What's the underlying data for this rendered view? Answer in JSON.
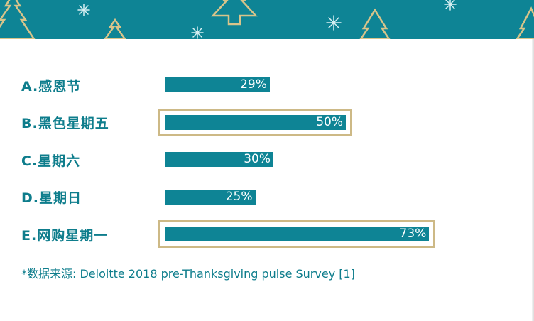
{
  "banner": {
    "background": "#0e8495",
    "decoration": "gold-christmas-tree-outlines-and-snowflakes"
  },
  "colors": {
    "bar": "#0e8495",
    "label": "#0e7d8c",
    "highlight_frame": "#cdb986",
    "value_text": "#ffffff"
  },
  "chart_data": {
    "type": "bar",
    "orientation": "horizontal",
    "categories": [
      "A.感恩节",
      "B.黑色星期五",
      "C.星期六",
      "D.星期日",
      "E.网购星期一"
    ],
    "values": [
      29,
      50,
      30,
      25,
      73
    ],
    "value_labels": [
      "29%",
      "50%",
      "30%",
      "25%",
      "73%"
    ],
    "highlighted": [
      "B.黑色星期五",
      "E.网购星期一"
    ],
    "unit": "%",
    "title": "",
    "xlabel": "",
    "ylabel": "",
    "xlim": [
      0,
      100
    ],
    "grid": false,
    "legend": "none"
  },
  "footnote": "*数据来源: Deloitte 2018 pre-Thanksgiving pulse Survey [1]"
}
